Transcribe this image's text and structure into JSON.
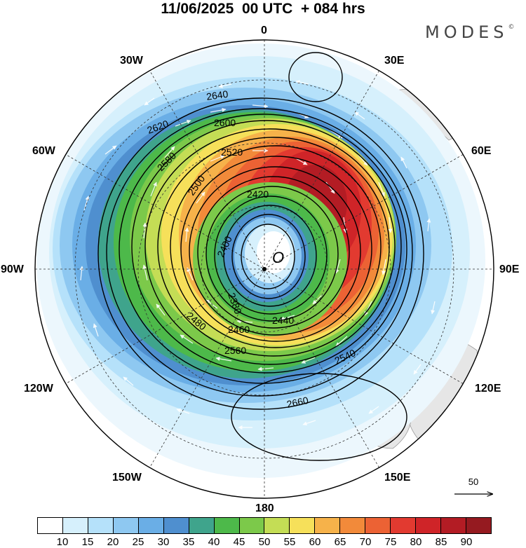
{
  "title": "11/06/2025  00 UTC  + 084 hrs",
  "logo": "MODES",
  "logo_mark": "©",
  "longitude_labels": [
    "0",
    "30E",
    "60E",
    "90E",
    "120E",
    "150E",
    "180",
    "150W",
    "120W",
    "90W",
    "60W",
    "30W"
  ],
  "contour_labels": [
    "2640",
    "2620",
    "2600",
    "2580",
    "2560",
    "2540",
    "2520",
    "2500",
    "2480",
    "2460",
    "2440",
    "2420",
    "2400",
    "2380",
    "2660"
  ],
  "low_center_marker": "O",
  "reference_vector_label": "50",
  "colorbar": {
    "colors": [
      "#ffffff",
      "#d6f0fc",
      "#b5e1fa",
      "#8ec8f1",
      "#6aaee6",
      "#4f8fcf",
      "#3fa48c",
      "#4db94a",
      "#7cc94a",
      "#c4dd55",
      "#f6e05a",
      "#f6b24a",
      "#f28a3a",
      "#ec6234",
      "#e23a30",
      "#cf2428",
      "#b31c24",
      "#951a20"
    ],
    "labels": [
      "10",
      "15",
      "20",
      "25",
      "30",
      "35",
      "40",
      "45",
      "50",
      "55",
      "60",
      "65",
      "70",
      "75",
      "80",
      "85",
      "90"
    ]
  },
  "map_info": {
    "projection": "polar-stereographic-south",
    "field_contours": "geopotential height",
    "shaded_field": "wind speed",
    "vectors": "wind"
  }
}
